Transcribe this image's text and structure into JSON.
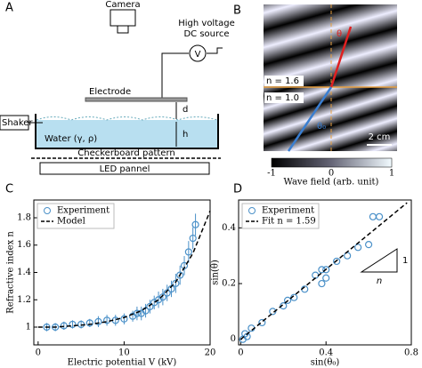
{
  "panel_labels": [
    "A",
    "B",
    "C",
    "D"
  ],
  "panel_a": {
    "camera": "Camera",
    "source": [
      "High voltage",
      "DC source"
    ],
    "meter": "V",
    "electrode": "Electrode",
    "gap": "d",
    "depth": "h",
    "shaker": "Shaker",
    "water": "Water (γ, ρ)",
    "pattern": "Checkerboard pattern",
    "led": "LED pannel"
  },
  "panel_b": {
    "angle_top": "θ",
    "angle_bottom": "θ₀",
    "n_top": "n = 1.6",
    "n_bottom": "n = 1.0",
    "scale": "2 cm",
    "colorbar_ticks": [
      -1,
      0,
      1
    ],
    "colorbar_label": "Wave field (arb. unit)"
  },
  "chart_data": [
    {
      "type": "scatter",
      "xlabel": "Electric potential V (kV)",
      "ylabel": "Refractive index n",
      "xlim": [
        -0.5,
        20
      ],
      "ylim": [
        0.87,
        1.93
      ],
      "xticks": [
        0,
        10,
        20
      ],
      "yticks": [
        1,
        1.2,
        1.4,
        1.6,
        1.8
      ],
      "legend": "upper left",
      "series": [
        {
          "name": "Experiment",
          "kind": "errorbar",
          "color": "#4a90c8",
          "x": [
            1,
            2,
            3,
            4,
            5,
            6,
            7,
            8,
            9,
            10,
            11,
            11.5,
            12,
            12.5,
            13,
            13.5,
            14,
            14.5,
            15,
            15.5,
            16,
            16.5,
            17,
            17.5,
            18,
            18.3
          ],
          "values": [
            1.0,
            1.0,
            1.01,
            1.02,
            1.02,
            1.03,
            1.04,
            1.05,
            1.05,
            1.06,
            1.08,
            1.1,
            1.1,
            1.12,
            1.15,
            1.18,
            1.2,
            1.22,
            1.25,
            1.28,
            1.32,
            1.38,
            1.45,
            1.55,
            1.65,
            1.75
          ],
          "errors": [
            0.03,
            0.03,
            0.03,
            0.03,
            0.03,
            0.03,
            0.04,
            0.04,
            0.04,
            0.04,
            0.04,
            0.05,
            0.05,
            0.05,
            0.05,
            0.05,
            0.06,
            0.06,
            0.06,
            0.06,
            0.07,
            0.07,
            0.07,
            0.08,
            0.08,
            0.08
          ]
        },
        {
          "name": "Model",
          "kind": "line",
          "dashed": true,
          "color": "#000000",
          "x": [
            0,
            2,
            4,
            6,
            8,
            10,
            12,
            14,
            16,
            18,
            20
          ],
          "values": [
            1.0,
            1.0,
            1.01,
            1.02,
            1.04,
            1.07,
            1.12,
            1.2,
            1.33,
            1.54,
            1.85
          ]
        }
      ]
    },
    {
      "type": "scatter",
      "xlabel": "sin(θ₀)",
      "ylabel": "sin(θ)",
      "xlim": [
        -0.01,
        0.8
      ],
      "ylim": [
        -0.02,
        0.5
      ],
      "xticks": [
        0,
        0.4,
        0.8
      ],
      "yticks": [
        0,
        0.2,
        0.4
      ],
      "legend": "upper left",
      "annotation": {
        "rise": "1",
        "run": "n"
      },
      "series": [
        {
          "name": "Experiment",
          "kind": "scatter",
          "color": "#4a90c8",
          "x": [
            0.01,
            0.02,
            0.03,
            0.05,
            0.1,
            0.15,
            0.2,
            0.22,
            0.25,
            0.3,
            0.35,
            0.38,
            0.4,
            0.4,
            0.38,
            0.45,
            0.5,
            0.55,
            0.6,
            0.62,
            0.65
          ],
          "values": [
            0.0,
            0.02,
            0.01,
            0.04,
            0.06,
            0.1,
            0.12,
            0.14,
            0.15,
            0.18,
            0.23,
            0.2,
            0.22,
            0.25,
            0.25,
            0.28,
            0.3,
            0.33,
            0.34,
            0.44,
            0.44
          ]
        },
        {
          "name": "Fit n = 1.59",
          "kind": "line",
          "dashed": true,
          "color": "#000000",
          "x": [
            0,
            0.78
          ],
          "values": [
            0,
            0.49
          ]
        }
      ]
    }
  ]
}
